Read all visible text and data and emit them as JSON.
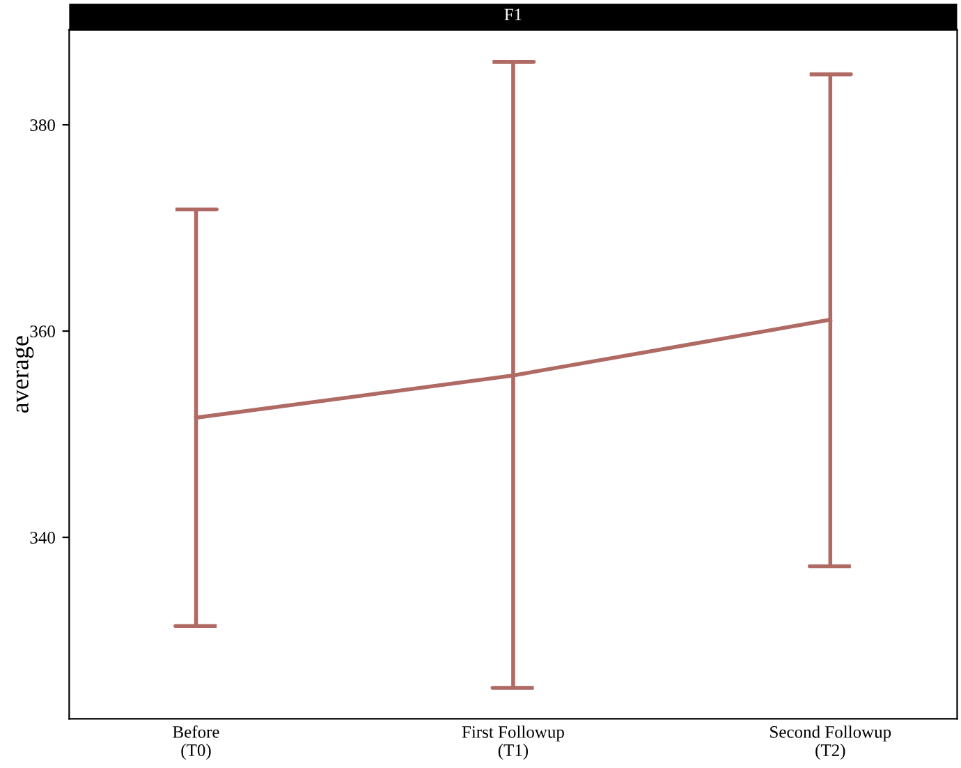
{
  "chart_data": {
    "type": "line",
    "title": "F1",
    "ylabel": "average",
    "categories": [
      "Before\n(T0)",
      "First Followup\n(T1)",
      "Second Followup\n(T2)"
    ],
    "series": [
      {
        "color": "#b06a64",
        "values": [
          351.6,
          355.7,
          361.1
        ],
        "errors": [
          [
            331.4,
            371.8
          ],
          [
            325.4,
            386.1
          ],
          [
            337.2,
            384.9
          ]
        ]
      }
    ],
    "ylim": [
      322.4,
      389.2
    ],
    "yticks": [
      340,
      360,
      380
    ],
    "grid": false,
    "legend": false,
    "marker": "none",
    "line_style": "solid"
  }
}
